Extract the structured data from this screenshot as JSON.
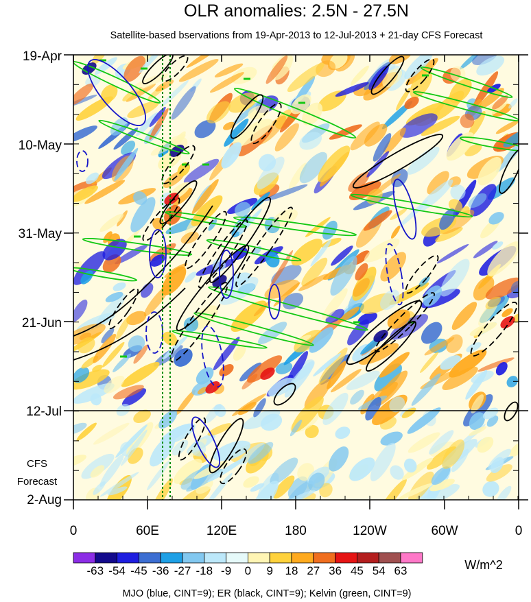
{
  "chart_data": {
    "type": "heatmap",
    "title": "OLR anomalies: 2.5N - 27.5N",
    "subtitle": "Satellite-based bservations from 19-Apr-2013 to 12-Jul-2013 + 21-day CFS Forecast",
    "y_ticks": [
      "19-Apr",
      "10-May",
      "31-May",
      "21-Jun",
      "12-Jul",
      "2-Aug"
    ],
    "forecast_label": [
      "CFS",
      "Forecast"
    ],
    "x_ticks": [
      "0",
      "60E",
      "120E",
      "180",
      "120W",
      "60W",
      "0"
    ],
    "colorbar": {
      "levels": [
        "-63",
        "-54",
        "-45",
        "-36",
        "-27",
        "-18",
        "-9",
        "0",
        "9",
        "18",
        "27",
        "36",
        "45",
        "54",
        "63"
      ],
      "colors": [
        "#8c2de6",
        "#130a8c",
        "#1e1ee0",
        "#3c6ed2",
        "#1ea0e6",
        "#82c8f0",
        "#bce8fa",
        "#e6fafa",
        "#fff5b4",
        "#ffd23c",
        "#ffaa1e",
        "#f06e1e",
        "#e61414",
        "#b41e1e",
        "#a05050",
        "#ff78c8"
      ],
      "unit": "W/m^2"
    },
    "legend_note": "MJO (blue, CINT=9); ER (black, CINT=9); Kelvin (green, CINT=9)",
    "series_colors": {
      "mjo": "#1414c8",
      "er": "#000000",
      "kelvin": "#14c814",
      "marker": "#0a8c0a"
    }
  }
}
